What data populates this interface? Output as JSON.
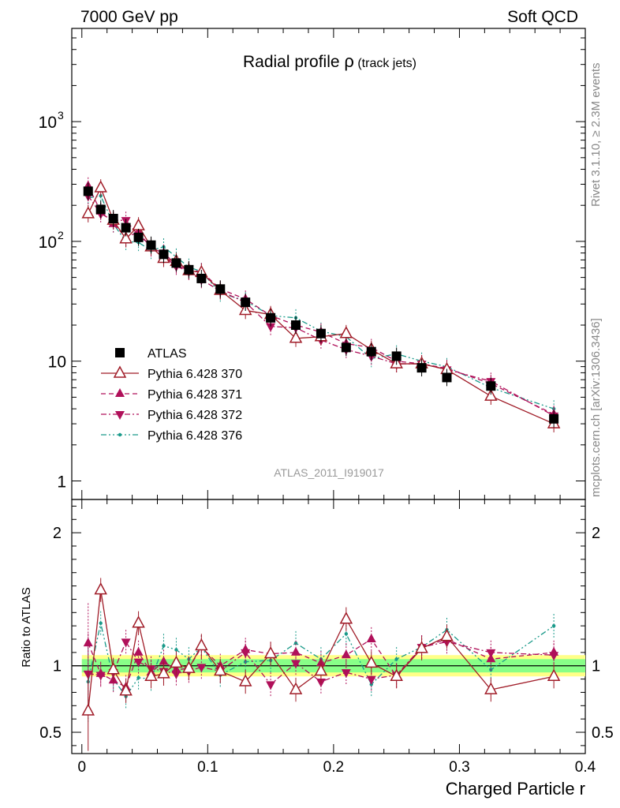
{
  "header": {
    "left": "7000 GeV pp",
    "right": "Soft QCD"
  },
  "title": {
    "main": "Radial profile ",
    "rho": "ρ",
    "sub": " (track jets)"
  },
  "side_labels": {
    "rivet": "Rivet 3.1.10, ≥ 2.3M events",
    "mcplots": "mcplots.cern.ch [arXiv:1306.3436]"
  },
  "analysis_id": "ATLAS_2011_I919017",
  "colors": {
    "atlas": "#000000",
    "p370": "#a01c28",
    "p371": "#b0105a",
    "p372": "#b0105a",
    "p376": "#1a9a8a",
    "band_yellow": "#ffff88",
    "band_green": "#88ff88"
  },
  "chart_data": [
    {
      "type": "scatter",
      "panel": "main",
      "y_scale": "log",
      "xlim": [
        -0.008,
        0.4
      ],
      "ylim": [
        0.7,
        6000
      ],
      "y_ticks": [
        {
          "value": 1,
          "label": "1"
        },
        {
          "value": 10,
          "label": "10"
        },
        {
          "value": 100,
          "label": "10",
          "exp": "2"
        },
        {
          "value": 1000,
          "label": "10",
          "exp": "3"
        }
      ],
      "x": [
        0.005,
        0.015,
        0.025,
        0.035,
        0.045,
        0.055,
        0.065,
        0.075,
        0.085,
        0.095,
        0.11,
        0.13,
        0.15,
        0.17,
        0.19,
        0.21,
        0.23,
        0.25,
        0.27,
        0.29,
        0.325,
        0.375
      ],
      "series": [
        {
          "name": "ATLAS",
          "key": "atlas",
          "marker": "square",
          "values": [
            262,
            185,
            155,
            130,
            108,
            93,
            78,
            66,
            58,
            49,
            40,
            31,
            23,
            20,
            17,
            13,
            12,
            11,
            8.8,
            7.3,
            6.2,
            3.3
          ]
        },
        {
          "name": "Pythia 6.428 370",
          "key": "p370",
          "marker": "triangle-up-open",
          "line": "solid",
          "values": [
            170,
            280,
            150,
            105,
            135,
            90,
            72,
            68,
            57,
            55,
            39,
            26.5,
            24.5,
            15.5,
            16,
            17,
            12.5,
            9.5,
            9.5,
            8.5,
            5.1,
            3.0
          ]
        },
        {
          "name": "Pythia 6.428 371",
          "key": "p371",
          "marker": "triangle-up",
          "line": "dashed",
          "values": [
            290,
            178,
            140,
            108,
            120,
            88,
            80,
            64,
            57,
            56,
            40,
            33,
            24,
            20,
            17.5,
            14,
            13,
            10,
            9.5,
            8.7,
            6.5,
            3.6
          ]
        },
        {
          "name": "Pythia 6.428 372",
          "key": "p372",
          "marker": "triangle-down",
          "line": "dashdot",
          "values": [
            240,
            170,
            150,
            150,
            112,
            92,
            75,
            62,
            56,
            48,
            38.5,
            31,
            19.5,
            19,
            15,
            12.5,
            11,
            9.5,
            9.5,
            8.5,
            6.8,
            3.5
          ]
        },
        {
          "name": "Pythia 6.428 376",
          "key": "p376",
          "marker": "dot",
          "line": "dashdotdot",
          "values": [
            230,
            240,
            140,
            100,
            98,
            84,
            90,
            74,
            61,
            56,
            37,
            32,
            24,
            23,
            17.8,
            16,
            10.5,
            11.5,
            10,
            9,
            6,
            4
          ]
        }
      ]
    },
    {
      "type": "scatter",
      "panel": "ratio",
      "ylabel": "Ratio to ATLAS",
      "xlabel": "Charged Particle r",
      "xlim": [
        -0.008,
        0.4
      ],
      "ylim": [
        0.34,
        2.25
      ],
      "y_ticks": [
        {
          "value": 0.5,
          "label": "0.5"
        },
        {
          "value": 1,
          "label": "1"
        },
        {
          "value": 2,
          "label": "2"
        }
      ],
      "x_ticks": [
        {
          "value": 0,
          "label": "0"
        },
        {
          "value": 0.1,
          "label": "0.1"
        },
        {
          "value": 0.2,
          "label": "0.2"
        },
        {
          "value": 0.3,
          "label": "0.3"
        },
        {
          "value": 0.4,
          "label": "0.4"
        }
      ],
      "x": [
        0.005,
        0.015,
        0.025,
        0.035,
        0.045,
        0.055,
        0.065,
        0.075,
        0.085,
        0.095,
        0.11,
        0.13,
        0.15,
        0.17,
        0.19,
        0.21,
        0.23,
        0.25,
        0.27,
        0.29,
        0.325,
        0.375
      ],
      "band": {
        "stat_half": 0.05,
        "total_half": 0.08
      },
      "series": [
        {
          "name": "Pythia 6.428 370",
          "key": "p370",
          "values": [
            0.66,
            1.57,
            0.97,
            0.81,
            1.32,
            0.92,
            0.94,
            1.02,
            0.98,
            1.15,
            0.96,
            0.88,
            1.09,
            0.82,
            0.96,
            1.35,
            1.02,
            0.92,
            1.13,
            1.22,
            0.82,
            0.92
          ]
        },
        {
          "name": "Pythia 6.428 371",
          "key": "p371",
          "values": [
            1.17,
            0.94,
            0.89,
            0.84,
            1.1,
            0.95,
            1.03,
            0.97,
            0.98,
            1.14,
            1.0,
            1.12,
            1.09,
            1.1,
            1.02,
            1.08,
            1.2,
            0.92,
            1.14,
            1.2,
            1.05,
            1.1
          ]
        },
        {
          "name": "Pythia 6.428 372",
          "key": "p372",
          "values": [
            0.94,
            0.93,
            0.95,
            1.18,
            1.03,
            0.98,
            0.96,
            0.94,
            0.96,
            0.99,
            0.96,
            1.1,
            0.86,
            1.02,
            0.88,
            0.95,
            0.9,
            0.93,
            1.14,
            1.18,
            1.1,
            1.08
          ]
        },
        {
          "name": "Pythia 6.428 376",
          "key": "p376",
          "values": [
            0.88,
            1.32,
            0.9,
            0.77,
            0.91,
            0.9,
            1.15,
            1.12,
            1.05,
            1.14,
            0.93,
            1.03,
            1.04,
            1.17,
            1.05,
            1.24,
            0.86,
            1.05,
            1.14,
            1.27,
            0.97,
            1.3
          ]
        }
      ]
    }
  ]
}
